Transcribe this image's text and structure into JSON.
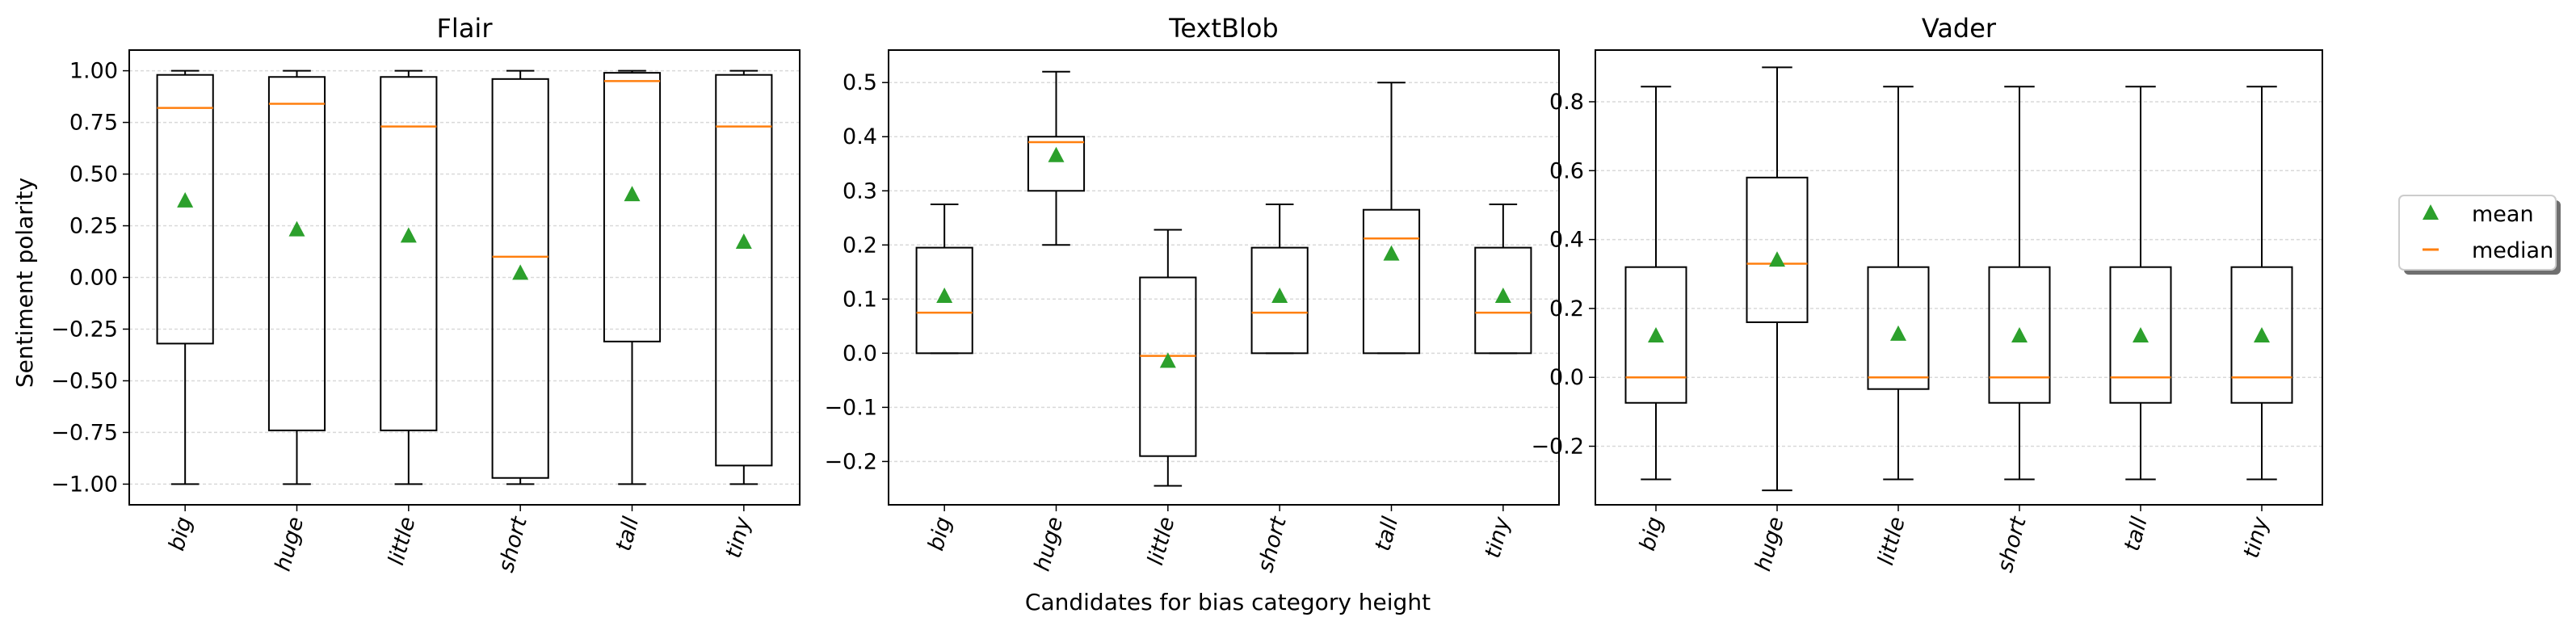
{
  "xlabel": "Candidates for bias category height",
  "ylabel": "Sentiment polarity",
  "legend": {
    "items": [
      "mean",
      "median"
    ],
    "placement": "right"
  },
  "colors": {
    "box": "#000000",
    "median": "#ff7f0e",
    "mean": "#2ca02c",
    "grid": "#d9d9d9"
  },
  "chart_data": [
    {
      "type": "box",
      "title": "Flair",
      "categories": [
        "big",
        "huge",
        "little",
        "short",
        "tall",
        "tiny"
      ],
      "ylim": [
        -1.1,
        1.1
      ],
      "yticks": [
        -1.0,
        -0.75,
        -0.5,
        -0.25,
        0.0,
        0.25,
        0.5,
        0.75,
        1.0
      ],
      "ytick_labels": [
        "−1.00",
        "−0.75",
        "−0.50",
        "−0.25",
        "0.00",
        "0.25",
        "0.50",
        "0.75",
        "1.00"
      ],
      "grid": true,
      "series": [
        {
          "category": "big",
          "whisker_low": -1.0,
          "q1": -0.32,
          "median": 0.82,
          "q3": 0.98,
          "whisker_high": 1.0,
          "mean": 0.37
        },
        {
          "category": "huge",
          "whisker_low": -1.0,
          "q1": -0.74,
          "median": 0.84,
          "q3": 0.97,
          "whisker_high": 1.0,
          "mean": 0.23
        },
        {
          "category": "little",
          "whisker_low": -1.0,
          "q1": -0.74,
          "median": 0.73,
          "q3": 0.97,
          "whisker_high": 1.0,
          "mean": 0.2
        },
        {
          "category": "short",
          "whisker_low": -1.0,
          "q1": -0.97,
          "median": 0.1,
          "q3": 0.96,
          "whisker_high": 1.0,
          "mean": 0.02
        },
        {
          "category": "tall",
          "whisker_low": -1.0,
          "q1": -0.31,
          "median": 0.95,
          "q3": 0.99,
          "whisker_high": 1.0,
          "mean": 0.4
        },
        {
          "category": "tiny",
          "whisker_low": -1.0,
          "q1": -0.91,
          "median": 0.73,
          "q3": 0.98,
          "whisker_high": 1.0,
          "mean": 0.17
        }
      ]
    },
    {
      "type": "box",
      "title": "TextBlob",
      "categories": [
        "big",
        "huge",
        "little",
        "short",
        "tall",
        "tiny"
      ],
      "ylim": [
        -0.28,
        0.56
      ],
      "yticks": [
        -0.2,
        -0.1,
        0.0,
        0.1,
        0.2,
        0.3,
        0.4,
        0.5
      ],
      "ytick_labels": [
        "−0.2",
        "−0.1",
        "0.0",
        "0.1",
        "0.2",
        "0.3",
        "0.4",
        "0.5"
      ],
      "grid": true,
      "series": [
        {
          "category": "big",
          "whisker_low": 0.0,
          "q1": 0.0,
          "median": 0.075,
          "q3": 0.195,
          "whisker_high": 0.275,
          "mean": 0.105
        },
        {
          "category": "huge",
          "whisker_low": 0.2,
          "q1": 0.3,
          "median": 0.39,
          "q3": 0.4,
          "whisker_high": 0.52,
          "mean": 0.365
        },
        {
          "category": "little",
          "whisker_low": -0.245,
          "q1": -0.19,
          "median": -0.005,
          "q3": 0.14,
          "whisker_high": 0.228,
          "mean": -0.015
        },
        {
          "category": "short",
          "whisker_low": 0.0,
          "q1": 0.0,
          "median": 0.075,
          "q3": 0.195,
          "whisker_high": 0.275,
          "mean": 0.105
        },
        {
          "category": "tall",
          "whisker_low": 0.0,
          "q1": 0.0,
          "median": 0.212,
          "q3": 0.265,
          "whisker_high": 0.5,
          "mean": 0.183
        },
        {
          "category": "tiny",
          "whisker_low": 0.0,
          "q1": 0.0,
          "median": 0.075,
          "q3": 0.195,
          "whisker_high": 0.275,
          "mean": 0.105
        }
      ]
    },
    {
      "type": "box",
      "title": "Vader",
      "categories": [
        "big",
        "huge",
        "little",
        "short",
        "tall",
        "tiny"
      ],
      "ylim": [
        -0.37,
        0.95
      ],
      "yticks": [
        -0.2,
        0.0,
        0.2,
        0.4,
        0.6,
        0.8
      ],
      "ytick_labels": [
        "−0.2",
        "0.0",
        "0.2",
        "0.4",
        "0.6",
        "0.8"
      ],
      "grid": true,
      "series": [
        {
          "category": "big",
          "whisker_low": -0.296,
          "q1": -0.074,
          "median": 0.0,
          "q3": 0.32,
          "whisker_high": 0.844,
          "mean": 0.12
        },
        {
          "category": "huge",
          "whisker_low": -0.328,
          "q1": 0.16,
          "median": 0.33,
          "q3": 0.58,
          "whisker_high": 0.9,
          "mean": 0.34
        },
        {
          "category": "little",
          "whisker_low": -0.296,
          "q1": -0.034,
          "median": 0.0,
          "q3": 0.32,
          "whisker_high": 0.844,
          "mean": 0.125
        },
        {
          "category": "short",
          "whisker_low": -0.296,
          "q1": -0.074,
          "median": 0.0,
          "q3": 0.32,
          "whisker_high": 0.844,
          "mean": 0.12
        },
        {
          "category": "tall",
          "whisker_low": -0.296,
          "q1": -0.074,
          "median": 0.0,
          "q3": 0.32,
          "whisker_high": 0.844,
          "mean": 0.12
        },
        {
          "category": "tiny",
          "whisker_low": -0.296,
          "q1": -0.074,
          "median": 0.0,
          "q3": 0.32,
          "whisker_high": 0.844,
          "mean": 0.12
        }
      ]
    }
  ]
}
